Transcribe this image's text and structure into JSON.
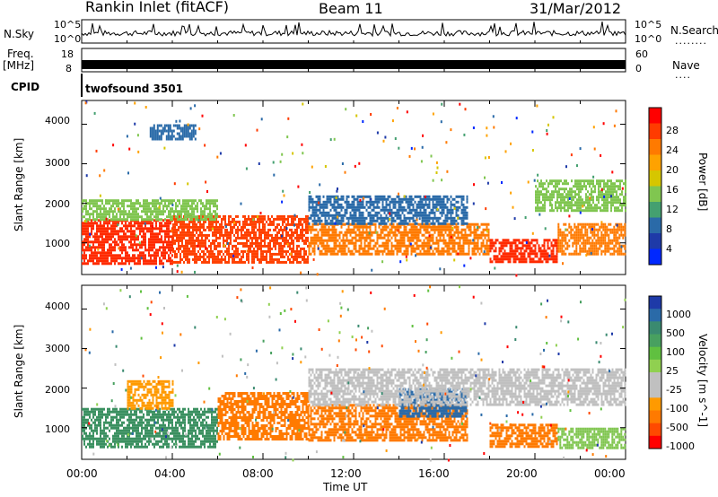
{
  "header": {
    "station": "Rankin Inlet (fitACF)",
    "beam": "Beam 11",
    "date": "31/Mar/2012"
  },
  "side_labels": {
    "nsky": "N.Sky",
    "freq_line1": "Freq.",
    "freq_line2": "[MHz]",
    "cpid": "CPID",
    "nsearch": "N.Search",
    "nsearch_dots": "........",
    "nave": "Nave",
    "nave_dots": "...."
  },
  "cpid_value": "twofsound 3501",
  "chart_data": [
    {
      "type": "line",
      "name": "noise-panel",
      "left_labels": [
        "10^5",
        "10^0"
      ],
      "right_labels": [
        "10^5",
        "10^0"
      ],
      "series": [
        {
          "name": "N.Sky"
        },
        {
          "name": "N.Search"
        }
      ]
    },
    {
      "type": "line",
      "name": "freq-nave-panel",
      "left_ticks": [
        "18",
        "8"
      ],
      "right_ticks": [
        "60",
        "0"
      ],
      "series": [
        {
          "name": "Freq.",
          "values_mhz": [
            8,
            18
          ]
        },
        {
          "name": "Nave"
        }
      ]
    },
    {
      "type": "heatmap",
      "name": "power-panel",
      "ylabel": "Slant Range [km]",
      "yticks": [
        "4000",
        "3000",
        "2000",
        "1000"
      ],
      "ylim": [
        200,
        4600
      ],
      "xlim": [
        0,
        24
      ],
      "colorbar": {
        "label": "Power [dB]",
        "ticks": [
          "28",
          "24",
          "20",
          "16",
          "12",
          "8",
          "4"
        ],
        "colors": [
          "#ff0000",
          "#ff3b00",
          "#ff7a00",
          "#ffa200",
          "#d6c600",
          "#80c650",
          "#44a070",
          "#2a6aa8",
          "#1e3aa8",
          "#0028ff"
        ]
      },
      "bands": [
        {
          "t0": 0,
          "t1": 4,
          "r0": 500,
          "r1": 1600,
          "color": "#ff2a00"
        },
        {
          "t0": 4,
          "t1": 10,
          "r0": 500,
          "r1": 1700,
          "color": "#ff4000"
        },
        {
          "t0": 10,
          "t1": 18,
          "r0": 700,
          "r1": 1500,
          "color": "#ff7a00"
        },
        {
          "t0": 18,
          "t1": 21,
          "r0": 500,
          "r1": 1100,
          "color": "#ff2a00"
        },
        {
          "t0": 21,
          "t1": 24,
          "r0": 700,
          "r1": 1500,
          "color": "#ff7a00"
        },
        {
          "t0": 0,
          "t1": 6,
          "r0": 1600,
          "r1": 2100,
          "color": "#80c650"
        },
        {
          "t0": 10,
          "t1": 17,
          "r0": 1500,
          "r1": 2200,
          "color": "#2a6aa8"
        },
        {
          "t0": 3,
          "t1": 5,
          "r0": 3600,
          "r1": 4000,
          "color": "#2a6aa8"
        },
        {
          "t0": 20,
          "t1": 24,
          "r0": 1800,
          "r1": 2600,
          "color": "#80c650"
        }
      ]
    },
    {
      "type": "heatmap",
      "name": "velocity-panel",
      "ylabel": "Slant Range [km]",
      "yticks": [
        "4000",
        "3000",
        "2000",
        "1000"
      ],
      "ylim": [
        200,
        4600
      ],
      "xlim": [
        0,
        24
      ],
      "colorbar": {
        "label": "Velocity [m s^-1]",
        "ticks": [
          "1000",
          "500",
          "100",
          "25",
          "-25",
          "-100",
          "-500",
          "-1000"
        ],
        "colors": [
          "#1e3aa8",
          "#2a6aa8",
          "#3a8a70",
          "#48a060",
          "#60c040",
          "#90d050",
          "#c0c0c0",
          "#c0c0c0",
          "#ff9a00",
          "#ff7a00",
          "#ff4a00",
          "#ff0000"
        ]
      },
      "bands": [
        {
          "t0": 0,
          "t1": 6,
          "r0": 500,
          "r1": 1500,
          "color": "#3a9060"
        },
        {
          "t0": 6,
          "t1": 10,
          "r0": 700,
          "r1": 1900,
          "color": "#ff7a00"
        },
        {
          "t0": 10,
          "t1": 17,
          "r0": 700,
          "r1": 1600,
          "color": "#ff7a00"
        },
        {
          "t0": 14,
          "t1": 17,
          "r0": 1300,
          "r1": 2000,
          "color": "#2a6aa8"
        },
        {
          "t0": 18,
          "t1": 21,
          "r0": 500,
          "r1": 1100,
          "color": "#ff7a00"
        },
        {
          "t0": 21,
          "t1": 24,
          "r0": 500,
          "r1": 1000,
          "color": "#80c650"
        },
        {
          "t0": 10,
          "t1": 24,
          "r0": 1600,
          "r1": 2500,
          "color": "#c0c0c0"
        },
        {
          "t0": 2,
          "t1": 4,
          "r0": 1500,
          "r1": 2200,
          "color": "#ff9a00"
        }
      ]
    }
  ],
  "x_axis": {
    "ticks": [
      "00:00",
      "04:00",
      "08:00",
      "12:00",
      "16:00",
      "20:00",
      "00:00"
    ],
    "label": "Time UT"
  }
}
